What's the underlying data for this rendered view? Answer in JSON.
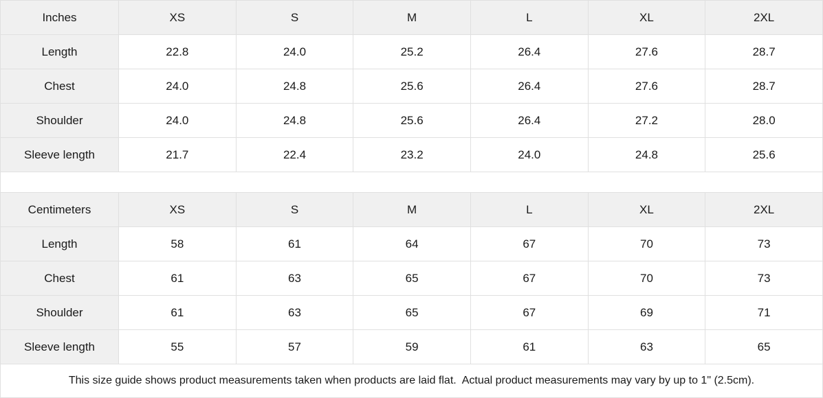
{
  "colors": {
    "header_bg": "#f0f0f0",
    "cell_bg": "#ffffff",
    "border": "#e0e0e0",
    "text": "#1a1a1a"
  },
  "size_guide": {
    "sizes": [
      "XS",
      "S",
      "M",
      "L",
      "XL",
      "2XL"
    ],
    "tables": [
      {
        "unit_label": "Inches",
        "rows": [
          {
            "label": "Length",
            "values": [
              "22.8",
              "24.0",
              "25.2",
              "26.4",
              "27.6",
              "28.7"
            ]
          },
          {
            "label": "Chest",
            "values": [
              "24.0",
              "24.8",
              "25.6",
              "26.4",
              "27.6",
              "28.7"
            ]
          },
          {
            "label": "Shoulder",
            "values": [
              "24.0",
              "24.8",
              "25.6",
              "26.4",
              "27.2",
              "28.0"
            ]
          },
          {
            "label": "Sleeve length",
            "values": [
              "21.7",
              "22.4",
              "23.2",
              "24.0",
              "24.8",
              "25.6"
            ]
          }
        ]
      },
      {
        "unit_label": "Centimeters",
        "rows": [
          {
            "label": "Length",
            "values": [
              "58",
              "61",
              "64",
              "67",
              "70",
              "73"
            ]
          },
          {
            "label": "Chest",
            "values": [
              "61",
              "63",
              "65",
              "67",
              "70",
              "73"
            ]
          },
          {
            "label": "Shoulder",
            "values": [
              "61",
              "63",
              "65",
              "67",
              "69",
              "71"
            ]
          },
          {
            "label": "Sleeve length",
            "values": [
              "55",
              "57",
              "59",
              "61",
              "63",
              "65"
            ]
          }
        ]
      }
    ],
    "footnote": "This size guide shows product measurements taken when products are laid flat.  Actual product measurements may vary by up to 1\" (2.5cm)."
  }
}
